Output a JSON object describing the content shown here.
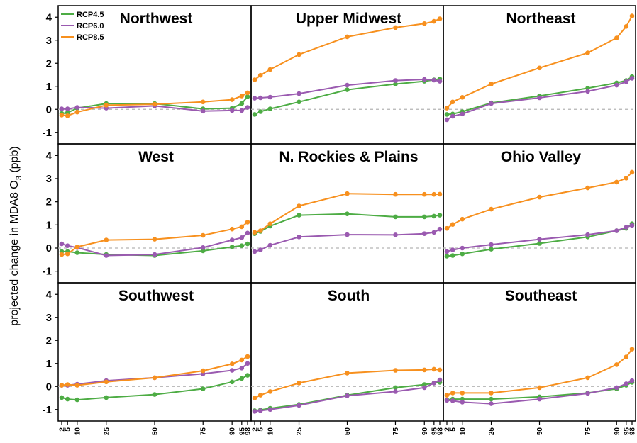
{
  "chart_data": {
    "type": "line",
    "ylabel": "projected change in MDA8 O3 (ppb)",
    "ylabel_main": "projected change in MDA8 O",
    "ylabel_sub": "3",
    "ylabel_unit": " (ppb)",
    "x": [
      2,
      5,
      10,
      25,
      50,
      75,
      90,
      95,
      98
    ],
    "x_tick_labels": [
      "2",
      "5",
      "10",
      "25",
      "50",
      "75",
      "90",
      "95",
      "98"
    ],
    "ylim": [
      -1.5,
      4.5
    ],
    "y_ticks": [
      -1,
      0,
      1,
      2,
      3,
      4
    ],
    "y_tick_labels": [
      "-1",
      "0",
      "1",
      "2",
      "3",
      "4"
    ],
    "zero_line": "dashed grey",
    "legend": {
      "placement": "top-left of first panel",
      "entries": [
        {
          "name": "RCP4.5",
          "color": "#4dac44"
        },
        {
          "name": "RCP6.0",
          "color": "#9a5ab0"
        },
        {
          "name": "RCP8.5",
          "color": "#f7901e"
        }
      ]
    },
    "panels": [
      {
        "title": "Northwest",
        "series": [
          {
            "name": "RCP4.5",
            "values": [
              -0.18,
              -0.15,
              0.05,
              0.25,
              0.25,
              0.02,
              0.05,
              0.25,
              0.55
            ]
          },
          {
            "name": "RCP6.0",
            "values": [
              0.02,
              0.02,
              0.08,
              0.05,
              0.15,
              -0.08,
              -0.05,
              -0.05,
              0.08
            ]
          },
          {
            "name": "RCP8.5",
            "values": [
              -0.25,
              -0.28,
              -0.12,
              0.18,
              0.22,
              0.32,
              0.42,
              0.58,
              0.72
            ]
          }
        ]
      },
      {
        "title": "Upper Midwest",
        "series": [
          {
            "name": "RCP4.5",
            "values": [
              -0.22,
              -0.1,
              0.02,
              0.32,
              0.85,
              1.1,
              1.22,
              1.28,
              1.32
            ]
          },
          {
            "name": "RCP6.0",
            "values": [
              0.48,
              0.5,
              0.53,
              0.68,
              1.05,
              1.25,
              1.3,
              1.27,
              1.22
            ]
          },
          {
            "name": "RCP8.5",
            "values": [
              1.28,
              1.48,
              1.73,
              2.38,
              3.15,
              3.55,
              3.72,
              3.82,
              3.93
            ]
          }
        ]
      },
      {
        "title": "Northeast",
        "series": [
          {
            "name": "RCP4.5",
            "values": [
              -0.22,
              -0.2,
              -0.1,
              0.28,
              0.58,
              0.92,
              1.15,
              1.25,
              1.42
            ]
          },
          {
            "name": "RCP6.0",
            "values": [
              -0.45,
              -0.3,
              -0.2,
              0.25,
              0.5,
              0.78,
              1.05,
              1.2,
              1.35
            ]
          },
          {
            "name": "RCP8.5",
            "values": [
              0.05,
              0.32,
              0.52,
              1.1,
              1.8,
              2.45,
              3.1,
              3.6,
              4.05
            ]
          }
        ]
      },
      {
        "title": "West",
        "series": [
          {
            "name": "RCP4.5",
            "values": [
              -0.15,
              -0.15,
              -0.2,
              -0.28,
              -0.32,
              -0.12,
              0.05,
              0.1,
              0.18
            ]
          },
          {
            "name": "RCP6.0",
            "values": [
              0.18,
              0.1,
              0.02,
              -0.32,
              -0.28,
              0.02,
              0.35,
              0.45,
              0.65
            ]
          },
          {
            "name": "RCP8.5",
            "values": [
              -0.28,
              -0.25,
              0.05,
              0.35,
              0.38,
              0.55,
              0.82,
              0.92,
              1.12
            ]
          }
        ]
      },
      {
        "title": "N. Rockies & Plains",
        "series": [
          {
            "name": "RCP4.5",
            "values": [
              0.62,
              0.72,
              0.95,
              1.42,
              1.48,
              1.35,
              1.35,
              1.38,
              1.42
            ]
          },
          {
            "name": "RCP6.0",
            "values": [
              -0.15,
              -0.08,
              0.12,
              0.48,
              0.58,
              0.57,
              0.62,
              0.68,
              0.82
            ]
          },
          {
            "name": "RCP8.5",
            "values": [
              0.68,
              0.75,
              1.05,
              1.82,
              2.35,
              2.32,
              2.32,
              2.32,
              2.33
            ]
          }
        ]
      },
      {
        "title": "Ohio Valley",
        "series": [
          {
            "name": "RCP4.5",
            "values": [
              -0.35,
              -0.32,
              -0.25,
              -0.05,
              0.2,
              0.48,
              0.75,
              0.85,
              1.05
            ]
          },
          {
            "name": "RCP6.0",
            "values": [
              -0.15,
              -0.08,
              0.0,
              0.15,
              0.38,
              0.58,
              0.75,
              0.9,
              0.98
            ]
          },
          {
            "name": "RCP8.5",
            "values": [
              0.85,
              1.02,
              1.25,
              1.68,
              2.2,
              2.6,
              2.85,
              3.02,
              3.28
            ]
          }
        ]
      },
      {
        "title": "Southwest",
        "series": [
          {
            "name": "RCP4.5",
            "values": [
              -0.48,
              -0.55,
              -0.58,
              -0.48,
              -0.35,
              -0.1,
              0.2,
              0.35,
              0.48
            ]
          },
          {
            "name": "RCP6.0",
            "values": [
              0.05,
              0.05,
              0.1,
              0.25,
              0.38,
              0.55,
              0.7,
              0.8,
              1.0
            ]
          },
          {
            "name": "RCP8.5",
            "values": [
              0.05,
              0.08,
              0.05,
              0.2,
              0.38,
              0.68,
              0.98,
              1.15,
              1.3
            ]
          }
        ]
      },
      {
        "title": "South",
        "series": [
          {
            "name": "RCP4.5",
            "values": [
              -1.05,
              -1.02,
              -0.95,
              -0.78,
              -0.38,
              -0.05,
              0.08,
              0.15,
              0.18
            ]
          },
          {
            "name": "RCP6.0",
            "values": [
              -1.08,
              -1.05,
              -1.0,
              -0.82,
              -0.4,
              -0.22,
              -0.05,
              0.15,
              0.28
            ]
          },
          {
            "name": "RCP8.5",
            "values": [
              -0.5,
              -0.38,
              -0.22,
              0.15,
              0.58,
              0.7,
              0.72,
              0.75,
              0.72
            ]
          }
        ]
      },
      {
        "title": "Southeast",
        "series": [
          {
            "name": "RCP4.5",
            "values": [
              -0.58,
              -0.55,
              -0.55,
              -0.55,
              -0.45,
              -0.28,
              -0.1,
              0.05,
              0.18
            ]
          },
          {
            "name": "RCP6.0",
            "values": [
              -0.6,
              -0.62,
              -0.68,
              -0.75,
              -0.55,
              -0.3,
              -0.05,
              0.12,
              0.25
            ]
          },
          {
            "name": "RCP8.5",
            "values": [
              -0.38,
              -0.28,
              -0.28,
              -0.28,
              -0.05,
              0.38,
              0.95,
              1.28,
              1.62
            ]
          }
        ]
      }
    ]
  }
}
